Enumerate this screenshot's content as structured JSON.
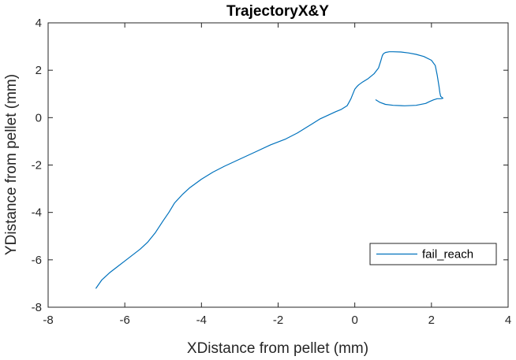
{
  "chart_data": {
    "type": "line",
    "title": "TrajectoryX&Y",
    "xlabel": "XDistance from pellet (mm)",
    "ylabel": "YDistance from pellet (mm)",
    "xlim": [
      -8,
      4
    ],
    "ylim": [
      -8,
      4
    ],
    "xticks": [
      -8,
      -6,
      -4,
      -2,
      0,
      2,
      4
    ],
    "yticks": [
      -8,
      -6,
      -4,
      -2,
      0,
      2,
      4
    ],
    "xtick_labels": [
      "-8",
      "-6",
      "-4",
      "-2",
      "0",
      "2",
      "4"
    ],
    "ytick_labels": [
      "-8",
      "-6",
      "-4",
      "-2",
      "0",
      "2",
      "4"
    ],
    "grid": false,
    "legend_position": "bottom-right",
    "series": [
      {
        "name": "fail_reach",
        "color": "#0072BD",
        "x": [
          -6.75,
          -6.6,
          -6.4,
          -6.2,
          -6.0,
          -5.8,
          -5.6,
          -5.4,
          -5.2,
          -5.0,
          -4.85,
          -4.7,
          -4.5,
          -4.3,
          -4.0,
          -3.7,
          -3.4,
          -3.0,
          -2.6,
          -2.2,
          -1.8,
          -1.5,
          -1.3,
          -1.1,
          -0.9,
          -0.7,
          -0.5,
          -0.35,
          -0.2,
          -0.15,
          -0.1,
          -0.05,
          0.0,
          0.05,
          0.1,
          0.2,
          0.35,
          0.5,
          0.62,
          0.68,
          0.72,
          0.75,
          0.8,
          0.9,
          1.0,
          1.2,
          1.4,
          1.6,
          1.8,
          2.0,
          2.1,
          2.15,
          2.2,
          2.22,
          2.24,
          2.28,
          2.3,
          2.25,
          2.15,
          2.05,
          1.95,
          1.85,
          1.6,
          1.3,
          1.0,
          0.8,
          0.65,
          0.55
        ],
        "y": [
          -7.2,
          -6.85,
          -6.55,
          -6.3,
          -6.05,
          -5.8,
          -5.55,
          -5.25,
          -4.85,
          -4.35,
          -4.0,
          -3.6,
          -3.25,
          -2.95,
          -2.6,
          -2.3,
          -2.05,
          -1.75,
          -1.45,
          -1.15,
          -0.9,
          -0.65,
          -0.45,
          -0.25,
          -0.05,
          0.1,
          0.25,
          0.35,
          0.5,
          0.65,
          0.8,
          1.0,
          1.2,
          1.3,
          1.38,
          1.5,
          1.65,
          1.85,
          2.1,
          2.4,
          2.62,
          2.7,
          2.75,
          2.78,
          2.78,
          2.77,
          2.73,
          2.67,
          2.58,
          2.42,
          2.2,
          1.8,
          1.3,
          1.05,
          0.9,
          0.85,
          0.82,
          0.8,
          0.8,
          0.75,
          0.68,
          0.6,
          0.52,
          0.5,
          0.52,
          0.56,
          0.65,
          0.75
        ]
      }
    ]
  }
}
